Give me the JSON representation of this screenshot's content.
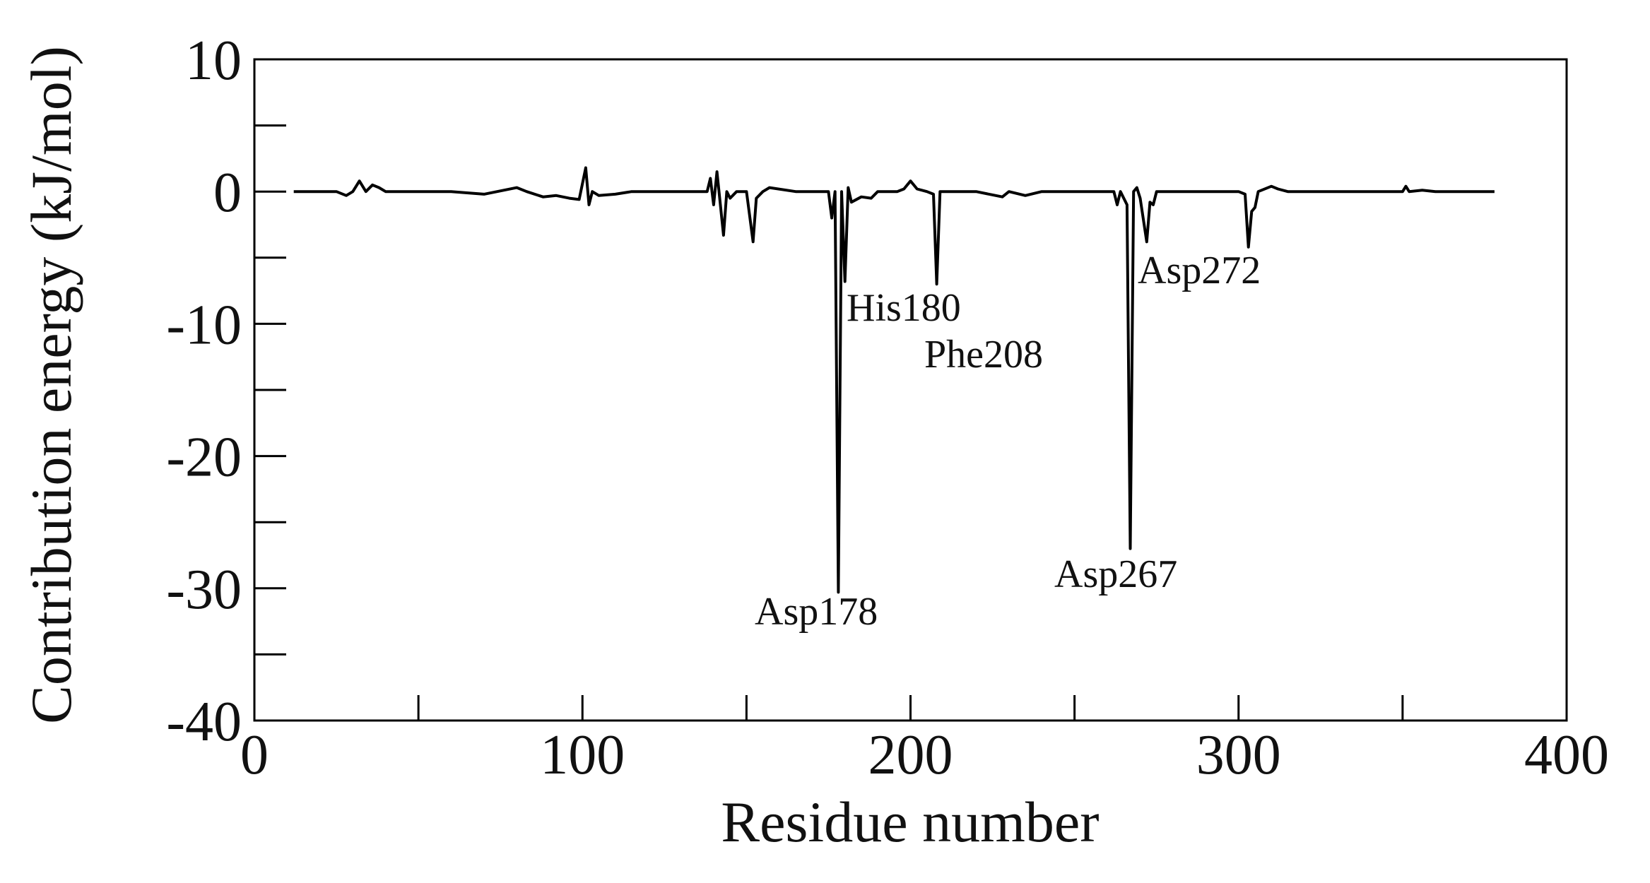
{
  "chart_data": {
    "type": "line",
    "x_label": "Residue number",
    "y_label": "Contribution energy (kJ/mol)",
    "xlim": [
      0,
      400
    ],
    "xticks": [
      0,
      100,
      200,
      300,
      400
    ],
    "xminorticks": [
      50,
      150,
      250,
      350
    ],
    "ylim": [
      -40,
      10
    ],
    "yticks": [
      -40,
      -30,
      -20,
      -10,
      0,
      10
    ],
    "yminorticks": [
      -35,
      -25,
      -15,
      -5,
      5
    ],
    "grid": false,
    "series": [
      {
        "color": "#000000",
        "x": [
          12,
          25,
          28,
          30,
          32,
          34,
          36,
          38,
          40,
          60,
          70,
          80,
          83,
          88,
          92,
          96,
          99,
          101,
          102,
          103,
          105,
          110,
          115,
          138,
          139,
          140,
          141,
          143,
          144,
          145,
          147,
          150,
          152,
          153,
          155,
          157,
          165,
          175,
          176,
          177,
          178,
          179,
          180,
          181,
          182,
          185,
          188,
          190,
          196,
          198,
          200,
          202,
          205,
          207,
          208,
          209,
          212,
          220,
          228,
          230,
          235,
          240,
          262,
          263,
          264,
          266,
          267,
          268,
          269,
          270,
          272,
          273,
          274,
          275,
          280,
          300,
          302,
          303,
          304,
          305,
          306,
          310,
          312,
          315,
          340,
          350,
          351,
          352,
          356,
          360,
          370,
          378
        ],
        "values": [
          0,
          0,
          -0.3,
          0,
          0.8,
          0,
          0.5,
          0.3,
          0,
          0,
          -0.2,
          0.3,
          0,
          -0.4,
          -0.3,
          -0.5,
          -0.6,
          1.8,
          -1,
          0,
          -0.3,
          -0.2,
          0,
          0,
          1,
          -1,
          1.5,
          -3.3,
          0,
          -0.5,
          0,
          0,
          -3.8,
          -0.5,
          0,
          0.3,
          0,
          0,
          -2,
          0,
          -30.3,
          0,
          -6.8,
          0.3,
          -0.8,
          -0.4,
          -0.5,
          0,
          0,
          0.2,
          0.8,
          0.2,
          0,
          -0.2,
          -7,
          0,
          0,
          0,
          -0.4,
          0,
          -0.3,
          0,
          0,
          -1,
          0,
          -1,
          -27,
          0,
          0.3,
          -0.5,
          -3.8,
          -0.8,
          -1,
          0,
          0,
          0,
          -0.2,
          -4.2,
          -1.5,
          -1.2,
          0,
          0.4,
          0.2,
          0,
          0,
          0,
          0.4,
          0,
          0.1,
          0,
          0,
          0
        ]
      }
    ],
    "annotations": [
      "His180",
      "Phe208",
      "Asp272",
      "Asp178",
      "Asp267"
    ]
  }
}
